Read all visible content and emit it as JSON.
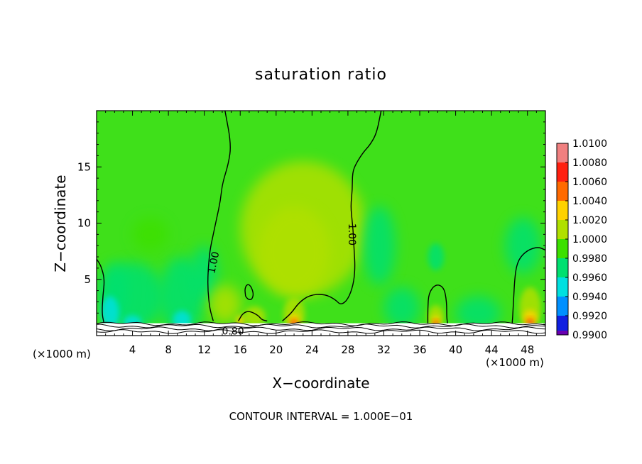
{
  "chart_data": {
    "type": "heatmap",
    "title": "saturation ratio",
    "xlabel": "X−coordinate",
    "ylabel": "Z−coordinate",
    "x_unit": "(×1000 m)",
    "z_unit": "(×1000 m)",
    "xlim": [
      0,
      50
    ],
    "ylim": [
      0,
      20
    ],
    "x_ticks": [
      4,
      8,
      12,
      16,
      20,
      24,
      28,
      32,
      36,
      40,
      44,
      48
    ],
    "x_tick_labels": [
      "4",
      "8",
      "12",
      "16",
      "20",
      "24",
      "28",
      "32",
      "36",
      "40",
      "44",
      "48"
    ],
    "y_ticks": [
      5,
      10,
      15
    ],
    "y_tick_labels": [
      "5",
      "10",
      "15"
    ],
    "note": "CONTOUR INTERVAL = 1.000E−01",
    "colorbar": {
      "levels": [
        "1.0100",
        "1.0080",
        "1.0060",
        "1.0040",
        "1.0020",
        "1.0000",
        "0.9980",
        "0.9960",
        "0.9940",
        "0.9920",
        "0.9900"
      ],
      "colors": [
        "#f08080",
        "#ff2010",
        "#ff6a00",
        "#ffd200",
        "#b0e000",
        "#3ce000",
        "#00e070",
        "#00e0e0",
        "#0090ff",
        "#1020e0",
        "#6a00b0"
      ]
    },
    "background_color": "#3fe01a",
    "contour_labels": [
      {
        "text": "1.00",
        "x": 13.0,
        "z": 6.5,
        "angle": -78
      },
      {
        "text": "1.00",
        "x": 28.5,
        "z": 9.0,
        "angle": 90
      },
      {
        "text": "0.80",
        "x": 15.2,
        "z": 0.4,
        "angle": 0
      }
    ],
    "contours_1_00": [
      [
        [
          14.3,
          20
        ],
        [
          15.0,
          17
        ],
        [
          14.7,
          15.3
        ],
        [
          14.0,
          13.5
        ],
        [
          13.8,
          12
        ],
        [
          13.4,
          10.5
        ],
        [
          13.0,
          9
        ],
        [
          12.6,
          7.5
        ],
        [
          12.4,
          5.5
        ],
        [
          12.4,
          4.0
        ],
        [
          12.6,
          2.4
        ],
        [
          13.0,
          1.3
        ]
      ],
      [
        [
          31.7,
          20
        ],
        [
          31.2,
          18
        ],
        [
          30.5,
          17
        ],
        [
          29.7,
          16.3
        ],
        [
          28.9,
          15.3
        ],
        [
          28.5,
          14.5
        ],
        [
          28.5,
          13
        ],
        [
          28.3,
          11.5
        ],
        [
          28.5,
          10
        ],
        [
          28.6,
          9
        ],
        [
          28.7,
          7.5
        ],
        [
          28.8,
          6
        ],
        [
          28.6,
          4.5
        ],
        [
          28.0,
          3.2
        ],
        [
          27.2,
          2.7
        ],
        [
          26.6,
          3.2
        ],
        [
          25.4,
          3.7
        ],
        [
          23.7,
          3.6
        ],
        [
          22.5,
          2.9
        ],
        [
          21.7,
          2.0
        ],
        [
          20.7,
          1.3
        ]
      ],
      [
        [
          15.8,
          1.3
        ],
        [
          16.3,
          2.0
        ],
        [
          17.0,
          2.2
        ],
        [
          18.0,
          1.8
        ],
        [
          18.4,
          1.4
        ],
        [
          19.0,
          1.3
        ]
      ],
      [
        [
          16.6,
          3.5
        ],
        [
          16.5,
          4.2
        ],
        [
          16.8,
          4.6
        ],
        [
          17.2,
          4.4
        ],
        [
          17.5,
          3.7
        ],
        [
          17.3,
          3.2
        ],
        [
          16.9,
          3.2
        ],
        [
          16.6,
          3.5
        ]
      ],
      [
        [
          0,
          6.8
        ],
        [
          0.5,
          6.2
        ],
        [
          0.9,
          5.0
        ],
        [
          0.7,
          3.5
        ],
        [
          0.6,
          2.0
        ],
        [
          0.8,
          1.2
        ]
      ],
      [
        [
          36.9,
          1.1
        ],
        [
          36.9,
          2.4
        ],
        [
          37.0,
          3.8
        ],
        [
          37.8,
          4.6
        ],
        [
          38.7,
          4.3
        ],
        [
          39.0,
          3.0
        ],
        [
          39.0,
          1.6
        ],
        [
          39.1,
          1.1
        ]
      ],
      [
        [
          46.3,
          1.1
        ],
        [
          46.4,
          2.3
        ],
        [
          46.6,
          5.5
        ],
        [
          47.0,
          6.8
        ],
        [
          48.0,
          7.6
        ],
        [
          49.2,
          7.9
        ],
        [
          50,
          7.6
        ]
      ]
    ],
    "features": [
      {
        "kind": "blob",
        "x": 4.0,
        "z": 3.5,
        "rx": 3.5,
        "rz": 3.0,
        "value": "0.9980"
      },
      {
        "kind": "blob",
        "x": 9.5,
        "z": 3.5,
        "rx": 2.5,
        "rz": 3.5,
        "value": "0.9980"
      },
      {
        "kind": "blob",
        "x": 12.0,
        "z": 5.5,
        "rx": 1.5,
        "rz": 2.5,
        "value": "0.9980"
      },
      {
        "kind": "blob",
        "x": 2.0,
        "z": 4.0,
        "rx": 1.5,
        "rz": 2.5,
        "value": "0.9980"
      },
      {
        "kind": "blob",
        "x": 6.0,
        "z": 9.0,
        "rx": 2.0,
        "rz": 1.5,
        "value": "1.0000"
      },
      {
        "kind": "blob",
        "x": 23.0,
        "z": 9.5,
        "rx": 7.0,
        "rz": 6.0,
        "value": "1.0020"
      },
      {
        "kind": "blob",
        "x": 22.0,
        "z": 7.5,
        "rx": 4.0,
        "rz": 4.0,
        "value": "1.0020"
      },
      {
        "kind": "blob",
        "x": 31.5,
        "z": 8.0,
        "rx": 1.8,
        "rz": 3.5,
        "value": "0.9980"
      },
      {
        "kind": "blob",
        "x": 34.0,
        "z": 2.5,
        "rx": 2.0,
        "rz": 1.8,
        "value": "0.9980"
      },
      {
        "kind": "blob",
        "x": 37.8,
        "z": 7.0,
        "rx": 0.9,
        "rz": 1.2,
        "value": "0.9980"
      },
      {
        "kind": "blob",
        "x": 42.5,
        "z": 2.0,
        "rx": 2.5,
        "rz": 1.5,
        "value": "0.9980"
      },
      {
        "kind": "blob",
        "x": 47.5,
        "z": 8.0,
        "rx": 2.0,
        "rz": 2.5,
        "value": "0.9980"
      },
      {
        "kind": "blob",
        "x": 1.5,
        "z": 2.0,
        "rx": 1.0,
        "rz": 1.5,
        "value": "0.9960"
      },
      {
        "kind": "blob",
        "x": 4.0,
        "z": 1.2,
        "rx": 1.0,
        "rz": 0.6,
        "value": "0.9960"
      },
      {
        "kind": "blob",
        "x": 9.5,
        "z": 1.4,
        "rx": 1.0,
        "rz": 0.8,
        "value": "0.9960"
      },
      {
        "kind": "blob",
        "x": 14.3,
        "z": 2.8,
        "rx": 1.8,
        "rz": 1.7,
        "value": "1.0020"
      },
      {
        "kind": "blob",
        "x": 17.6,
        "z": 1.7,
        "rx": 1.2,
        "rz": 0.9,
        "value": "1.0020"
      },
      {
        "kind": "blob",
        "x": 16.0,
        "z": 1.3,
        "rx": 0.5,
        "rz": 0.5,
        "value": "1.0040"
      },
      {
        "kind": "blob",
        "x": 22.0,
        "z": 1.9,
        "rx": 1.2,
        "rz": 1.5,
        "value": "1.0020"
      },
      {
        "kind": "blob",
        "x": 22.0,
        "z": 1.4,
        "rx": 0.6,
        "rz": 0.6,
        "value": "1.0040"
      },
      {
        "kind": "blob",
        "x": 22.0,
        "z": 1.1,
        "rx": 0.4,
        "rz": 0.3,
        "value": "1.0080"
      },
      {
        "kind": "blob",
        "x": 37.8,
        "z": 1.7,
        "rx": 0.9,
        "rz": 1.0,
        "value": "1.0020"
      },
      {
        "kind": "blob",
        "x": 37.8,
        "z": 1.3,
        "rx": 0.5,
        "rz": 0.5,
        "value": "1.0040"
      },
      {
        "kind": "blob",
        "x": 37.8,
        "z": 1.1,
        "rx": 0.3,
        "rz": 0.25,
        "value": "1.0080"
      },
      {
        "kind": "blob",
        "x": 48.3,
        "z": 2.5,
        "rx": 1.2,
        "rz": 1.8,
        "value": "1.0020"
      },
      {
        "kind": "blob",
        "x": 48.3,
        "z": 1.6,
        "rx": 0.8,
        "rz": 0.7,
        "value": "1.0040"
      },
      {
        "kind": "blob",
        "x": 48.3,
        "z": 1.2,
        "rx": 0.4,
        "rz": 0.3,
        "value": "1.0080"
      }
    ]
  }
}
